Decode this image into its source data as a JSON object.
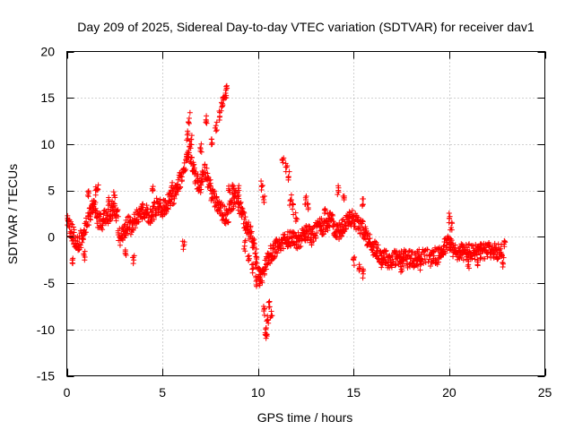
{
  "chart_data": {
    "type": "scatter",
    "title": "Day 209 of 2025, Sidereal Day-to-day VTEC variation (SDTVAR) for receiver dav1",
    "xlabel": "GPS time / hours",
    "ylabel": "SDTVAR / TECUs",
    "xlim": [
      0,
      25
    ],
    "ylim": [
      -15,
      20
    ],
    "x_ticks": [
      0,
      5,
      10,
      15,
      20,
      25
    ],
    "y_ticks": [
      -15,
      -10,
      -5,
      0,
      5,
      10,
      15,
      20
    ],
    "grid": true,
    "marker": "+",
    "series": [
      {
        "name": "SDTVAR",
        "color": "#ff0000",
        "trend": [
          [
            0.0,
            1.5
          ],
          [
            0.2,
            0.8
          ],
          [
            0.4,
            0.0
          ],
          [
            0.6,
            -1.0
          ],
          [
            0.8,
            0.2
          ],
          [
            1.0,
            1.0
          ],
          [
            1.2,
            2.5
          ],
          [
            1.4,
            3.5
          ],
          [
            1.6,
            2.0
          ],
          [
            1.8,
            1.5
          ],
          [
            2.0,
            2.5
          ],
          [
            2.2,
            2.0
          ],
          [
            2.4,
            3.0
          ],
          [
            2.6,
            2.5
          ],
          [
            2.8,
            0.0
          ],
          [
            3.0,
            0.5
          ],
          [
            3.2,
            1.5
          ],
          [
            3.4,
            1.0
          ],
          [
            3.6,
            2.0
          ],
          [
            3.8,
            2.5
          ],
          [
            4.0,
            3.0
          ],
          [
            4.2,
            2.5
          ],
          [
            4.4,
            2.0
          ],
          [
            4.6,
            3.0
          ],
          [
            4.8,
            3.5
          ],
          [
            5.0,
            3.0
          ],
          [
            5.2,
            3.5
          ],
          [
            5.4,
            4.0
          ],
          [
            5.6,
            4.5
          ],
          [
            5.8,
            5.5
          ],
          [
            6.0,
            6.5
          ],
          [
            6.2,
            8.0
          ],
          [
            6.4,
            9.5
          ],
          [
            6.6,
            7.5
          ],
          [
            6.8,
            6.0
          ],
          [
            7.0,
            5.5
          ],
          [
            7.2,
            7.0
          ],
          [
            7.4,
            6.0
          ],
          [
            7.6,
            4.5
          ],
          [
            7.8,
            4.0
          ],
          [
            8.0,
            3.0
          ],
          [
            8.2,
            2.5
          ],
          [
            8.4,
            2.0
          ],
          [
            8.6,
            3.5
          ],
          [
            8.8,
            4.5
          ],
          [
            9.0,
            3.5
          ],
          [
            9.2,
            2.5
          ],
          [
            9.4,
            1.0
          ],
          [
            9.6,
            0.5
          ],
          [
            9.8,
            -1.5
          ],
          [
            10.0,
            -4.0
          ],
          [
            10.2,
            -4.5
          ],
          [
            10.4,
            -3.0
          ],
          [
            10.6,
            -2.0
          ],
          [
            10.8,
            -1.5
          ],
          [
            11.0,
            -1.0
          ],
          [
            11.2,
            -0.8
          ],
          [
            11.4,
            -0.5
          ],
          [
            11.6,
            -0.2
          ],
          [
            11.8,
            0.0
          ],
          [
            12.0,
            -0.5
          ],
          [
            12.2,
            -0.2
          ],
          [
            12.4,
            0.2
          ],
          [
            12.6,
            0.5
          ],
          [
            12.8,
            0.0
          ],
          [
            13.0,
            0.5
          ],
          [
            13.2,
            1.5
          ],
          [
            13.4,
            1.0
          ],
          [
            13.6,
            1.5
          ],
          [
            13.8,
            2.0
          ],
          [
            14.0,
            1.0
          ],
          [
            14.2,
            0.5
          ],
          [
            14.4,
            1.0
          ],
          [
            14.6,
            1.5
          ],
          [
            14.8,
            2.0
          ],
          [
            15.0,
            2.0
          ],
          [
            15.2,
            1.5
          ],
          [
            15.4,
            1.0
          ],
          [
            15.6,
            0.5
          ],
          [
            15.8,
            -0.5
          ],
          [
            16.0,
            -1.0
          ],
          [
            16.2,
            -1.5
          ],
          [
            16.4,
            -2.0
          ],
          [
            16.6,
            -2.0
          ],
          [
            16.8,
            -2.5
          ],
          [
            17.0,
            -2.5
          ],
          [
            17.2,
            -2.2
          ],
          [
            17.4,
            -2.5
          ],
          [
            17.6,
            -2.2
          ],
          [
            17.8,
            -2.5
          ],
          [
            18.0,
            -2.3
          ],
          [
            18.2,
            -2.5
          ],
          [
            18.4,
            -2.2
          ],
          [
            18.6,
            -2.0
          ],
          [
            19.0,
            -2.3
          ],
          [
            19.2,
            -2.0
          ],
          [
            19.4,
            -2.2
          ],
          [
            19.6,
            -1.5
          ],
          [
            19.8,
            -1.0
          ],
          [
            20.0,
            -0.5
          ],
          [
            20.2,
            -1.5
          ],
          [
            20.4,
            -1.8
          ],
          [
            20.6,
            -1.5
          ],
          [
            20.8,
            -1.8
          ],
          [
            21.0,
            -1.5
          ],
          [
            21.2,
            -1.8
          ],
          [
            21.4,
            -1.5
          ],
          [
            21.6,
            -1.7
          ],
          [
            21.8,
            -1.5
          ],
          [
            22.0,
            -1.6
          ],
          [
            22.2,
            -1.4
          ],
          [
            22.4,
            -1.6
          ],
          [
            22.6,
            -1.5
          ],
          [
            22.8,
            -1.7
          ]
        ],
        "excursions": [
          [
            0.3,
            -2.5
          ],
          [
            0.9,
            -2.0
          ],
          [
            1.1,
            4.5
          ],
          [
            1.5,
            5.0
          ],
          [
            1.6,
            5.2
          ],
          [
            2.2,
            4.0
          ],
          [
            2.5,
            4.5
          ],
          [
            3.1,
            -2.0
          ],
          [
            3.5,
            -2.5
          ],
          [
            4.5,
            5.0
          ],
          [
            5.5,
            5.5
          ],
          [
            6.1,
            -1.0
          ],
          [
            6.3,
            11.0
          ],
          [
            6.4,
            12.8
          ],
          [
            6.5,
            10.5
          ],
          [
            7.0,
            9.5
          ],
          [
            7.3,
            12.5
          ],
          [
            7.6,
            10.0
          ],
          [
            7.8,
            12.0
          ],
          [
            8.0,
            13.0
          ],
          [
            8.1,
            14.0
          ],
          [
            8.2,
            14.8
          ],
          [
            8.3,
            15.5
          ],
          [
            8.35,
            16.0
          ],
          [
            8.5,
            5.0
          ],
          [
            8.7,
            5.5
          ],
          [
            9.0,
            5.0
          ],
          [
            9.3,
            -1.0
          ],
          [
            9.5,
            -2.5
          ],
          [
            9.7,
            -3.5
          ],
          [
            9.9,
            -4.8
          ],
          [
            10.1,
            -5.0
          ],
          [
            10.2,
            5.5
          ],
          [
            10.3,
            4.0
          ],
          [
            10.3,
            -8.0
          ],
          [
            10.4,
            -10.0
          ],
          [
            10.45,
            -10.5
          ],
          [
            10.5,
            -9.0
          ],
          [
            10.6,
            -7.0
          ],
          [
            10.7,
            -8.5
          ],
          [
            11.3,
            8.0
          ],
          [
            11.5,
            7.5
          ],
          [
            11.6,
            6.5
          ],
          [
            11.7,
            4.0
          ],
          [
            11.8,
            3.0
          ],
          [
            12.0,
            2.0
          ],
          [
            12.5,
            4.0
          ],
          [
            12.6,
            3.5
          ],
          [
            13.5,
            3.0
          ],
          [
            14.2,
            5.0
          ],
          [
            14.5,
            4.0
          ],
          [
            15.0,
            -2.5
          ],
          [
            15.3,
            -3.5
          ],
          [
            15.5,
            -4.0
          ],
          [
            15.5,
            3.5
          ],
          [
            16.5,
            -3.0
          ],
          [
            17.5,
            -3.5
          ],
          [
            18.5,
            -3.0
          ],
          [
            20.0,
            2.0
          ],
          [
            20.1,
            1.0
          ],
          [
            21.0,
            -3.0
          ],
          [
            21.5,
            -2.5
          ],
          [
            22.8,
            -2.8
          ],
          [
            22.9,
            -0.5
          ]
        ]
      }
    ]
  }
}
